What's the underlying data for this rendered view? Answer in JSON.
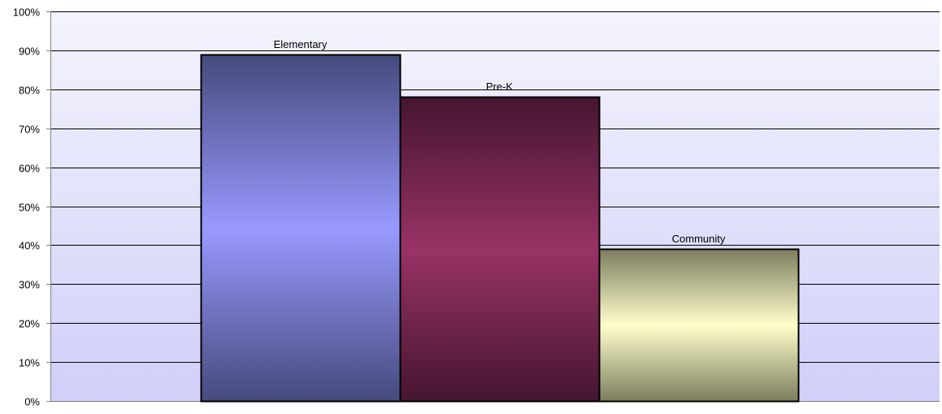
{
  "chart_data": {
    "type": "bar",
    "categories": [
      "Elementary",
      "Pre-K",
      "Community"
    ],
    "values": [
      89,
      78,
      39
    ],
    "value_unit": "%",
    "ylim": [
      0,
      100
    ],
    "yticks": [
      "0%",
      "10%",
      "20%",
      "30%",
      "40%",
      "50%",
      "60%",
      "70%",
      "80%",
      "90%",
      "100%"
    ],
    "title": "",
    "xlabel": "",
    "ylabel": "",
    "grid": true,
    "legend": "none",
    "data_label_content": "category name",
    "colors": {
      "plot_background_top": "#f4f4fd",
      "plot_background_bottom": "#cfcff9",
      "gridline": "#000000",
      "axis": "#808080",
      "bar_outline": "#000000",
      "bars": [
        {
          "edge": "#454a7c",
          "center": "#9999ff"
        },
        {
          "edge": "#451530",
          "center": "#993366"
        },
        {
          "edge": "#7d7d5f",
          "center": "#ffffcc"
        }
      ]
    }
  }
}
